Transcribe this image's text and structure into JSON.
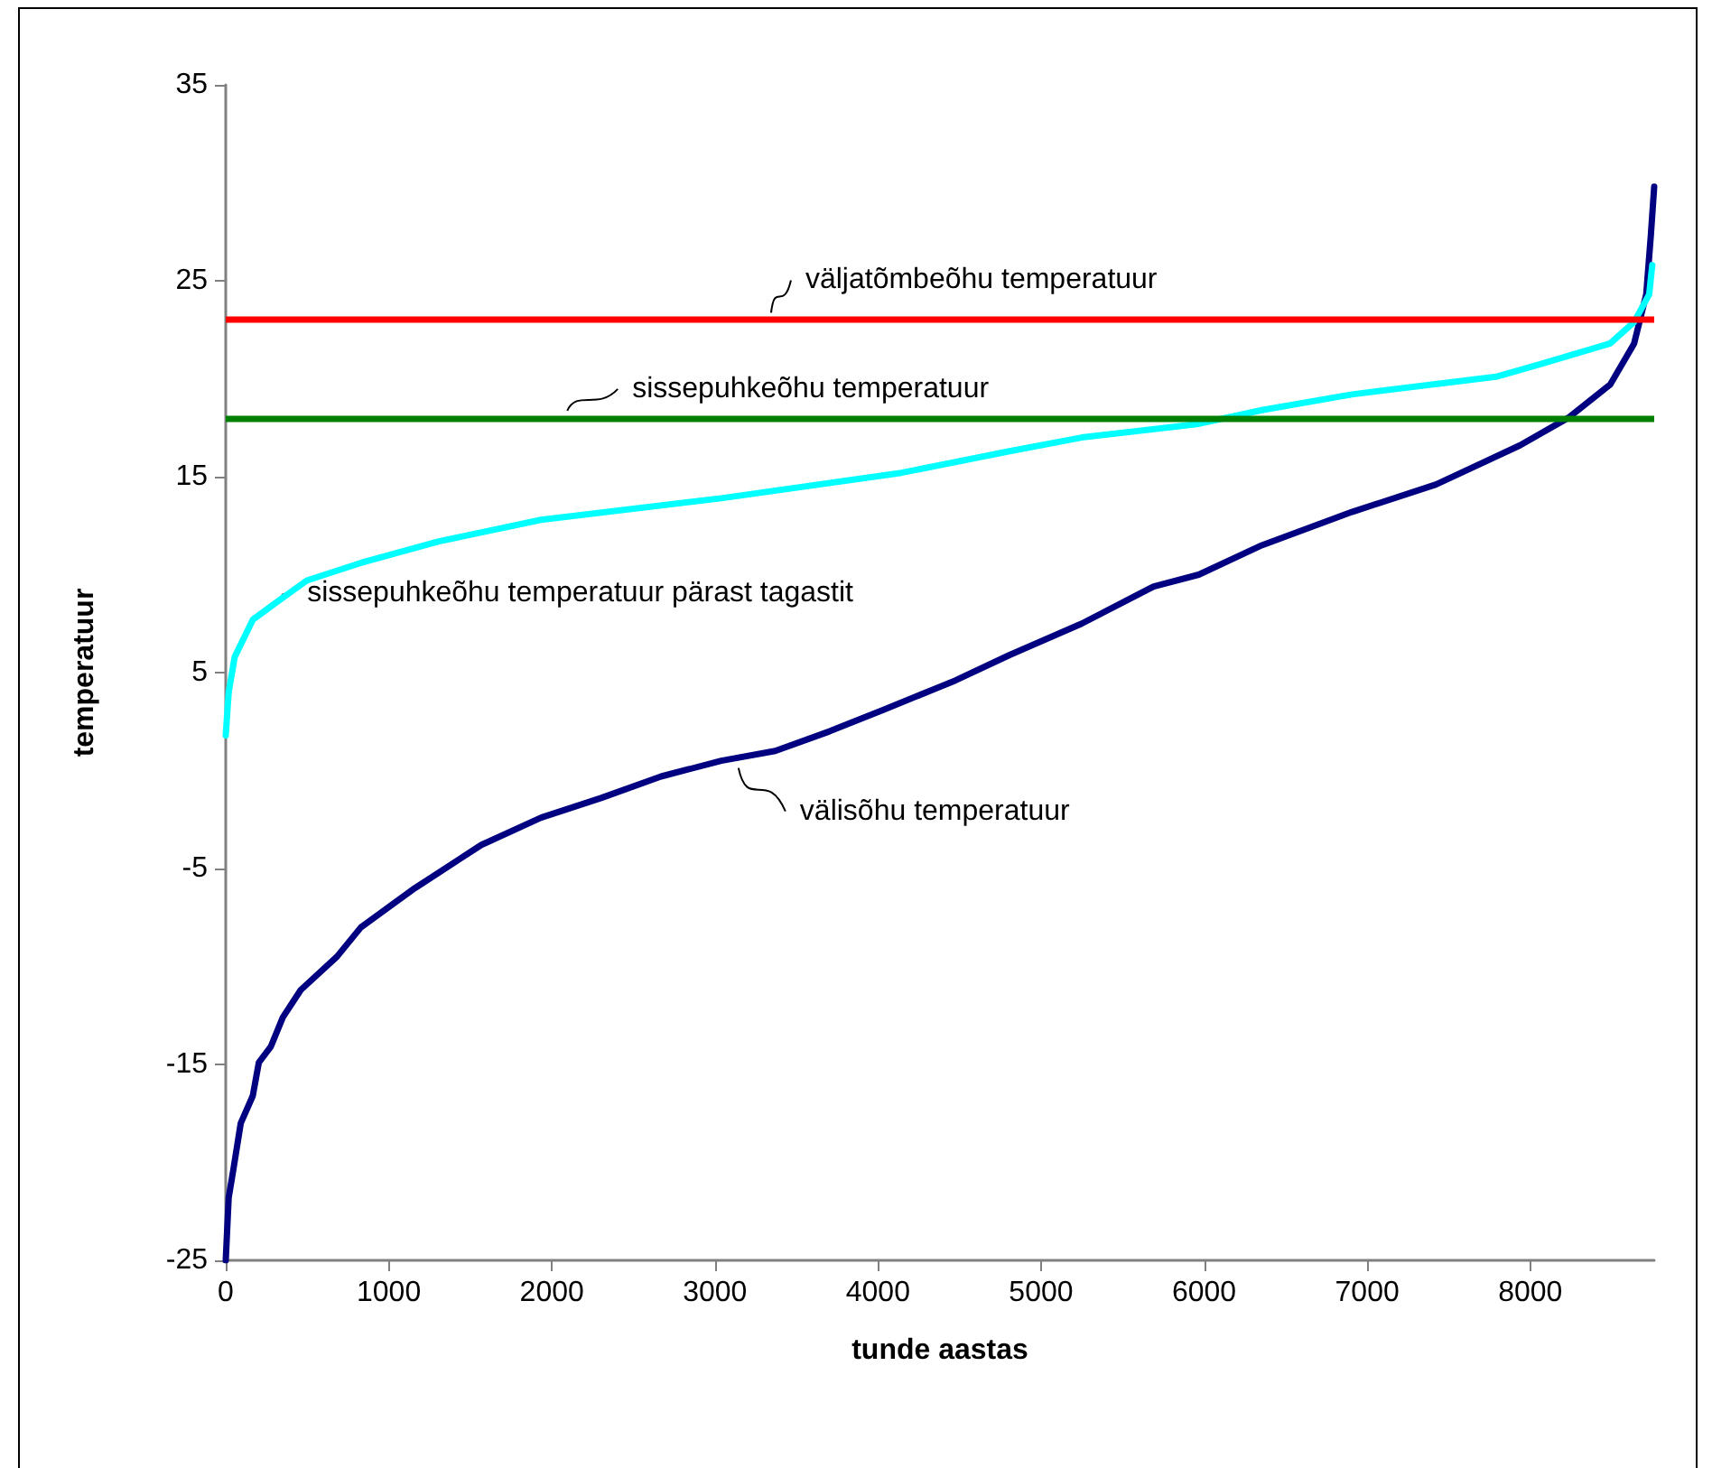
{
  "chart_data": {
    "type": "line",
    "xlabel": "tunde aastas",
    "ylabel": "temperatuur",
    "xlim": [
      0,
      8760
    ],
    "xticks": [
      0,
      1000,
      2000,
      3000,
      4000,
      5000,
      6000,
      7000,
      8000
    ],
    "ylim": [
      -25,
      35
    ],
    "yticks": [
      -25,
      -15,
      -5,
      5,
      15,
      25,
      35
    ],
    "grid": false,
    "marker": "none",
    "line_style": "solid",
    "series": [
      {
        "color": "#000080",
        "x": [
          0,
          18,
          48,
          92,
          166,
          203,
          276,
          350,
          460,
          682,
          829,
          1160,
          1566,
          1934,
          2302,
          2670,
          3039,
          3370,
          3702,
          4033,
          4475,
          4807,
          5249,
          5691,
          5967,
          6354,
          6906,
          7422,
          7937,
          8232,
          8490,
          8637,
          8711,
          8740,
          8760
        ],
        "values": [
          -25,
          -21.8,
          -20.3,
          -18,
          -16.6,
          -14.9,
          -14.1,
          -12.6,
          -11.2,
          -9.5,
          -8,
          -6,
          -3.8,
          -2.4,
          -1.4,
          -0.3,
          0.5,
          1,
          2,
          3.1,
          4.6,
          5.9,
          7.5,
          9.4,
          10,
          11.5,
          13.2,
          14.6,
          16.6,
          18,
          19.7,
          21.8,
          24.3,
          27.4,
          29.8
        ]
      },
      {
        "color": "#00ffff",
        "x": [
          0,
          18,
          55,
          166,
          313,
          497,
          829,
          1307,
          1934,
          3039,
          4144,
          4807,
          5249,
          5967,
          6354,
          6906,
          7790,
          8085,
          8490,
          8637,
          8729,
          8748
        ],
        "values": [
          1.8,
          4,
          5.8,
          7.7,
          8.6,
          9.7,
          10.6,
          11.7,
          12.8,
          13.9,
          15.2,
          16.3,
          17,
          17.7,
          18.4,
          19.2,
          20.1,
          20.8,
          21.8,
          22.9,
          24.3,
          25.8
        ]
      }
    ],
    "ref_lines": [
      {
        "axis": "y",
        "value": 23,
        "color": "#ff0000"
      },
      {
        "axis": "y",
        "value": 18,
        "color": "#008000"
      }
    ],
    "annotations": [
      {
        "text": "väljatõmbeõhu temperatuur",
        "x": 3300,
        "y": 23
      },
      {
        "text": "sissepuhkeõhu temperatuur",
        "x": 2050,
        "y": 18
      },
      {
        "text": "sissepuhkeõhu temperatuur pärast tagastit",
        "x": 300,
        "y": 8.6
      },
      {
        "text": "välisõhu temperatuur",
        "x": 3100,
        "y": 0.5
      }
    ]
  }
}
